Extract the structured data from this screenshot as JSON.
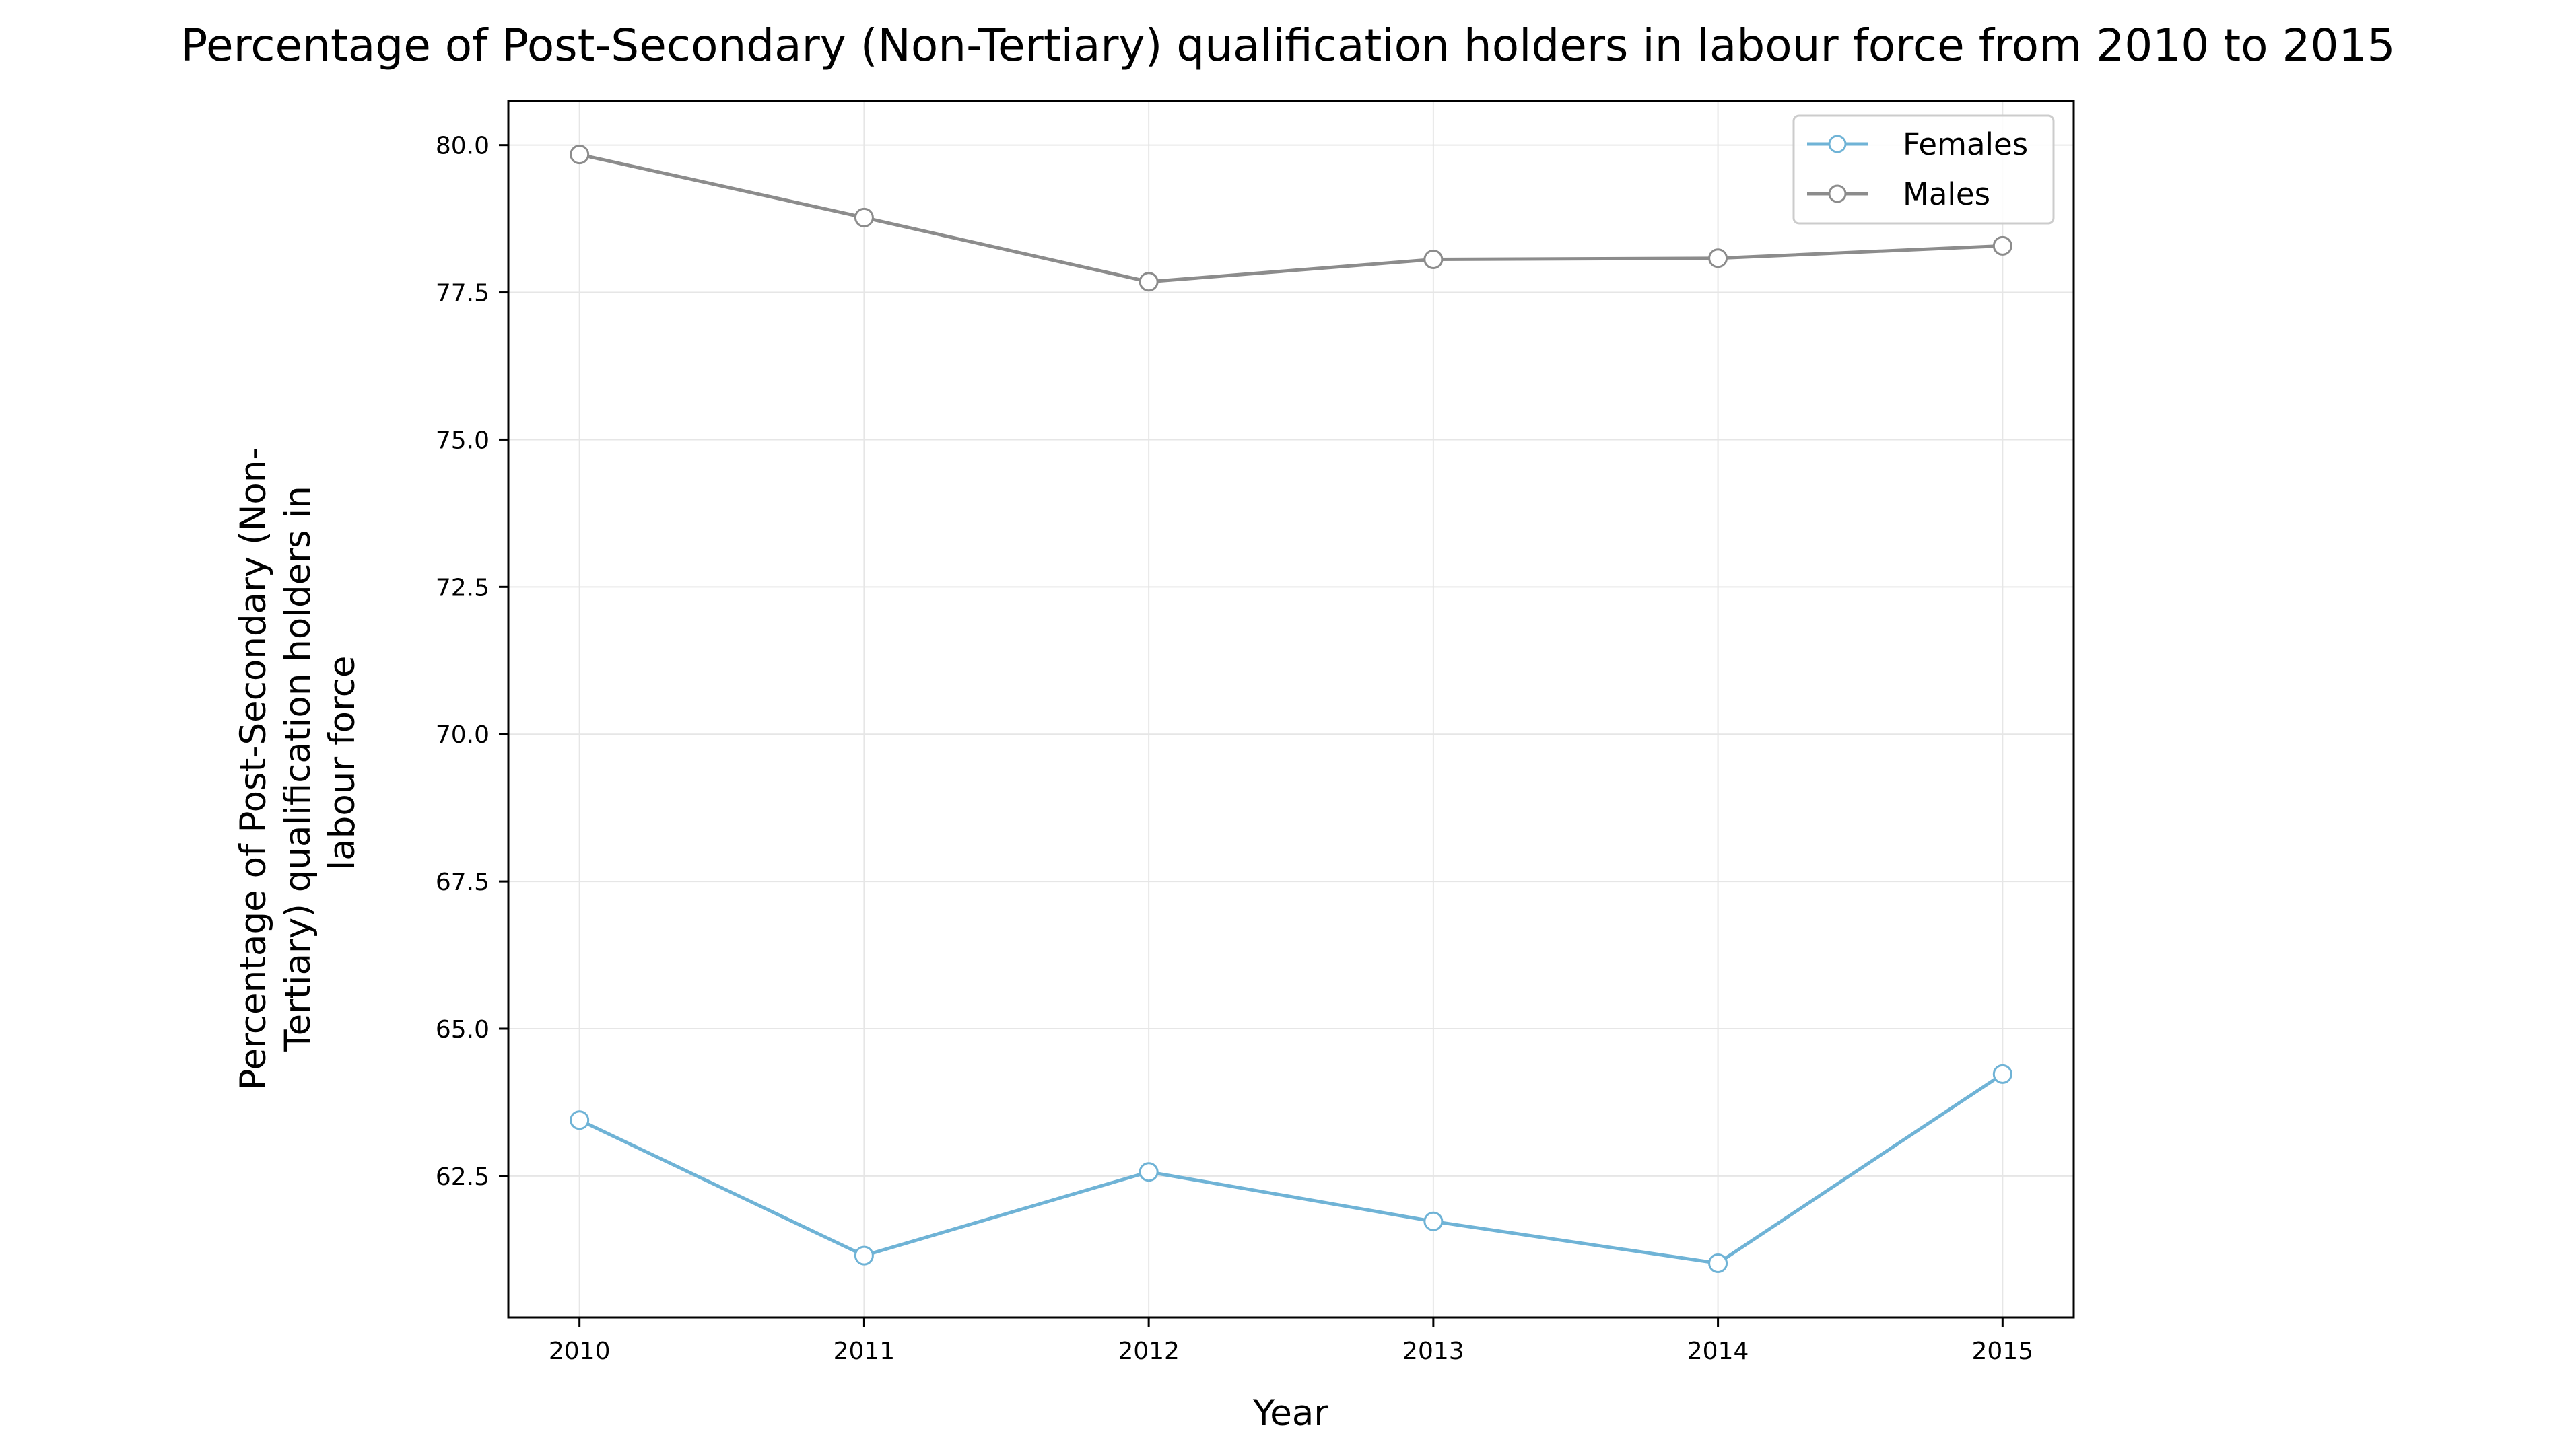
{
  "chart_data": {
    "type": "line",
    "title": "Percentage of Post-Secondary (Non-Tertiary) qualification holders in labour force from 2010 to 2015",
    "xlabel": "Year",
    "ylabel_lines": [
      "Percentage of Post-Secondary (Non-",
      "Tertiary) qualification holders in",
      "labour force"
    ],
    "x": [
      2010,
      2011,
      2012,
      2013,
      2014,
      2015
    ],
    "x_tick_labels": [
      "2010",
      "2011",
      "2012",
      "2013",
      "2014",
      "2015"
    ],
    "y_ticks": [
      62.5,
      65.0,
      67.5,
      70.0,
      72.5,
      75.0,
      77.5,
      80.0
    ],
    "y_tick_labels": [
      "62.5",
      "65.0",
      "67.5",
      "70.0",
      "72.5",
      "75.0",
      "77.5",
      "80.0"
    ],
    "xlim": [
      2009.75,
      2015.25
    ],
    "ylim": [
      60.1,
      80.75
    ],
    "grid": true,
    "legend_position": "top-right",
    "series": [
      {
        "name": "Females",
        "color": "#6fb3d6",
        "values": [
          63.45,
          61.15,
          62.57,
          61.73,
          61.02,
          64.23
        ]
      },
      {
        "name": "Males",
        "color": "#8c8c8c",
        "values": [
          79.84,
          78.77,
          77.68,
          78.06,
          78.08,
          78.29
        ]
      }
    ]
  }
}
